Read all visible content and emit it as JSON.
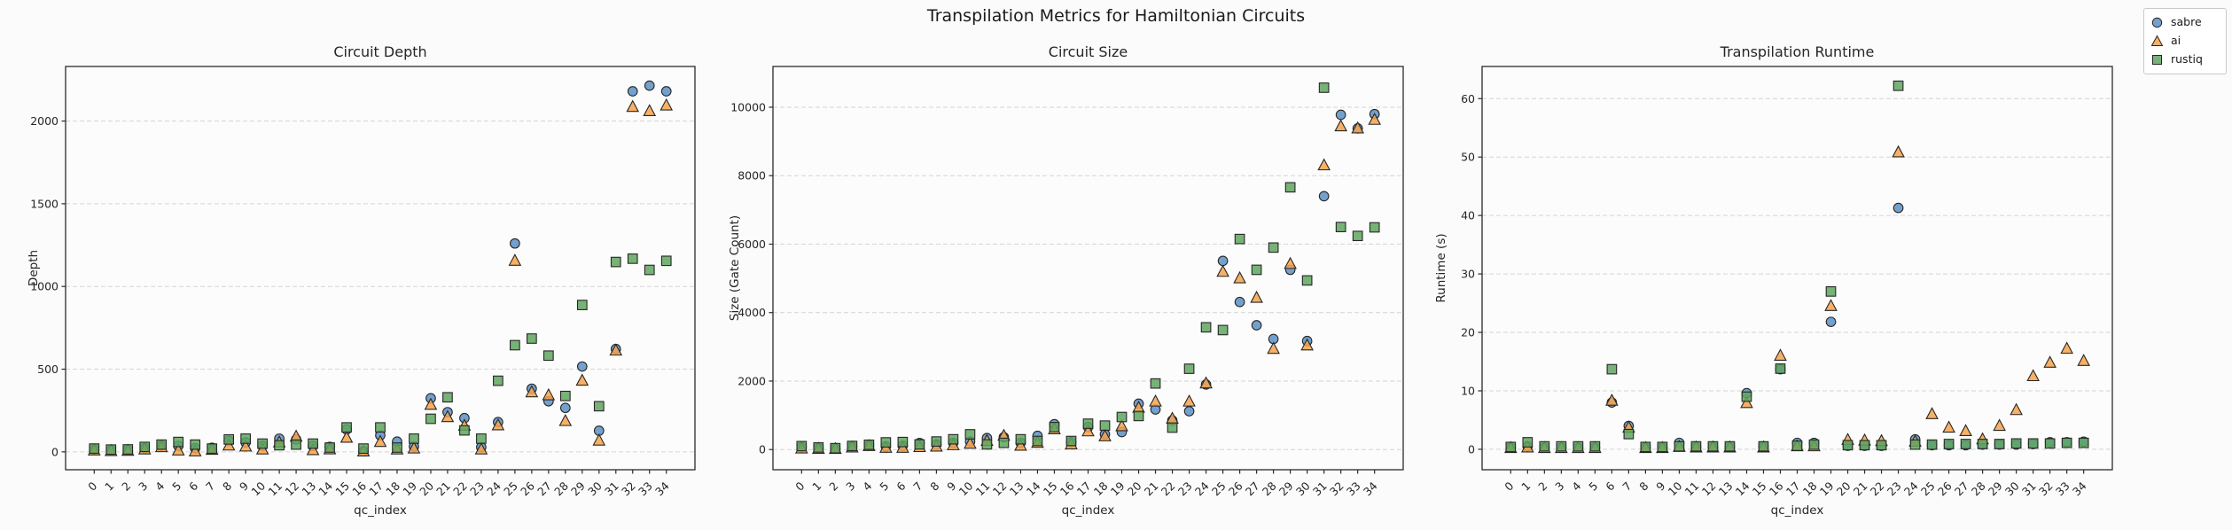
{
  "figure_title": "Transpilation Metrics for Hamiltonian Circuits",
  "legend": {
    "items": [
      {
        "label": "sabre",
        "marker": "circle",
        "color": "#5A8FC4"
      },
      {
        "label": "ai",
        "marker": "triangle",
        "color": "#F7A24A"
      },
      {
        "label": "rustiq",
        "marker": "square",
        "color": "#5FA55F"
      }
    ]
  },
  "style": {
    "marker_edge_color": "#262626",
    "grid_color": "#d4d4d4",
    "spine_color": "#2a2a2a",
    "axes_background": "#fcfcfc"
  },
  "chart_data": [
    {
      "type": "scatter",
      "title": "Circuit Depth",
      "xlabel": "qc_index",
      "ylabel": "Depth",
      "x": [
        0,
        1,
        2,
        3,
        4,
        5,
        6,
        7,
        8,
        9,
        10,
        11,
        12,
        13,
        14,
        15,
        16,
        17,
        18,
        19,
        20,
        21,
        22,
        23,
        24,
        25,
        26,
        27,
        28,
        29,
        30,
        31,
        32,
        33,
        34
      ],
      "xlim": [
        -1.7,
        35.7
      ],
      "ylim": [
        -108,
        2330
      ],
      "yticks": [
        0,
        500,
        1000,
        1500,
        2000
      ],
      "grid": "horizontal-dashed",
      "legend_position": "figure-top-right",
      "series": [
        {
          "name": "sabre",
          "marker": "circle",
          "color": "#5A8FC4",
          "values": [
            14,
            9,
            12,
            22,
            38,
            36,
            22,
            25,
            66,
            57,
            36,
            80,
            75,
            36,
            30,
            135,
            3,
            100,
            62,
            32,
            324,
            240,
            204,
            28,
            180,
            1260,
            382,
            306,
            266,
            516,
            128,
            622,
            2180,
            2214,
            2180
          ]
        },
        {
          "name": "ai",
          "marker": "triangle",
          "color": "#F7A24A",
          "values": [
            8,
            5,
            6,
            14,
            28,
            8,
            3,
            12,
            38,
            32,
            14,
            57,
            92,
            10,
            15,
            85,
            2,
            60,
            14,
            20,
            284,
            210,
            158,
            14,
            160,
            1155,
            360,
            342,
            186,
            430,
            68,
            612,
            2085,
            2060,
            2094
          ]
        },
        {
          "name": "rustiq",
          "marker": "square",
          "color": "#5FA55F",
          "values": [
            20,
            14,
            15,
            30,
            44,
            60,
            44,
            20,
            75,
            80,
            50,
            40,
            44,
            50,
            26,
            148,
            20,
            148,
            26,
            80,
            200,
            330,
            130,
            80,
            430,
            645,
            685,
            582,
            338,
            888,
            276,
            1148,
            1168,
            1100,
            1155
          ]
        }
      ]
    },
    {
      "type": "scatter",
      "title": "Circuit Size",
      "xlabel": "qc_index",
      "ylabel": "Size (Gate Count)",
      "x": [
        0,
        1,
        2,
        3,
        4,
        5,
        6,
        7,
        8,
        9,
        10,
        11,
        12,
        13,
        14,
        15,
        16,
        17,
        18,
        19,
        20,
        21,
        22,
        23,
        24,
        25,
        26,
        27,
        28,
        29,
        30,
        31,
        32,
        33,
        34
      ],
      "xlim": [
        -1.7,
        35.7
      ],
      "ylim": [
        -590,
        11190
      ],
      "yticks": [
        0,
        2000,
        4000,
        6000,
        8000,
        10000
      ],
      "grid": "horizontal-dashed",
      "series": [
        {
          "name": "sabre",
          "marker": "circle",
          "color": "#5A8FC4",
          "values": [
            70,
            45,
            30,
            90,
            130,
            90,
            110,
            190,
            150,
            195,
            235,
            335,
            360,
            195,
            400,
            740,
            220,
            655,
            445,
            510,
            1340,
            1170,
            850,
            1120,
            1900,
            5510,
            4310,
            3630,
            3230,
            5250,
            3170,
            7400,
            9780,
            9380,
            9800
          ]
        },
        {
          "name": "ai",
          "marker": "triangle",
          "color": "#F7A24A",
          "values": [
            30,
            20,
            15,
            60,
            100,
            50,
            50,
            70,
            85,
            125,
            170,
            250,
            400,
            110,
            195,
            590,
            150,
            530,
            385,
            680,
            1220,
            1400,
            900,
            1400,
            1930,
            5190,
            5000,
            4430,
            2940,
            5420,
            3040,
            8300,
            9440,
            9380,
            9630
          ]
        },
        {
          "name": "rustiq",
          "marker": "square",
          "color": "#5FA55F",
          "values": [
            100,
            60,
            40,
            105,
            140,
            210,
            220,
            150,
            235,
            300,
            445,
            150,
            195,
            300,
            250,
            655,
            250,
            755,
            700,
            950,
            980,
            1930,
            640,
            2360,
            3570,
            3490,
            6150,
            5250,
            5900,
            7660,
            4940,
            10570,
            6500,
            6240,
            6490
          ]
        }
      ]
    },
    {
      "type": "scatter",
      "title": "Transpilation Runtime",
      "xlabel": "qc_index",
      "ylabel": "Runtime (s)",
      "x": [
        0,
        1,
        2,
        3,
        4,
        5,
        6,
        7,
        8,
        9,
        10,
        11,
        12,
        13,
        14,
        15,
        16,
        17,
        18,
        19,
        20,
        21,
        22,
        23,
        24,
        25,
        26,
        27,
        28,
        29,
        30,
        31,
        32,
        33,
        34
      ],
      "xlim": [
        -1.7,
        35.7
      ],
      "ylim": [
        -3.5,
        65.5
      ],
      "yticks": [
        0,
        10,
        20,
        30,
        40,
        50,
        60
      ],
      "grid": "horizontal-dashed",
      "series": [
        {
          "name": "sabre",
          "marker": "circle",
          "color": "#5A8FC4",
          "values": [
            0.3,
            0.5,
            0.3,
            0.3,
            0.3,
            0.3,
            8.0,
            4.0,
            0.3,
            0.3,
            1.1,
            0.4,
            0.4,
            0.4,
            9.6,
            0.5,
            13.7,
            1.1,
            1.1,
            21.8,
            0.6,
            0.6,
            0.6,
            41.3,
            1.7,
            0.7,
            0.7,
            0.7,
            0.8,
            0.8,
            0.8,
            0.9,
            1.2,
            1.2,
            1.3
          ]
        },
        {
          "name": "ai",
          "marker": "triangle",
          "color": "#F7A24A",
          "values": [
            0.2,
            0.3,
            0.2,
            0.2,
            0.2,
            0.2,
            8.3,
            3.7,
            0.2,
            0.2,
            0.4,
            0.3,
            0.3,
            0.3,
            7.9,
            0.3,
            16.0,
            0.5,
            0.5,
            24.5,
            1.6,
            1.5,
            1.4,
            50.8,
            1.3,
            6.0,
            3.7,
            3.1,
            1.7,
            4.0,
            6.7,
            12.5,
            14.8,
            17.2,
            15.1
          ]
        },
        {
          "name": "rustiq",
          "marker": "square",
          "color": "#5FA55F",
          "values": [
            0.4,
            1.2,
            0.5,
            0.5,
            0.5,
            0.5,
            13.7,
            2.6,
            0.4,
            0.4,
            0.5,
            0.5,
            0.5,
            0.5,
            9.0,
            0.5,
            13.8,
            0.6,
            0.8,
            27.0,
            0.7,
            0.7,
            0.7,
            62.2,
            0.8,
            0.8,
            0.9,
            0.9,
            0.9,
            0.9,
            1.0,
            1.0,
            1.0,
            1.1,
            1.1
          ]
        }
      ]
    }
  ]
}
